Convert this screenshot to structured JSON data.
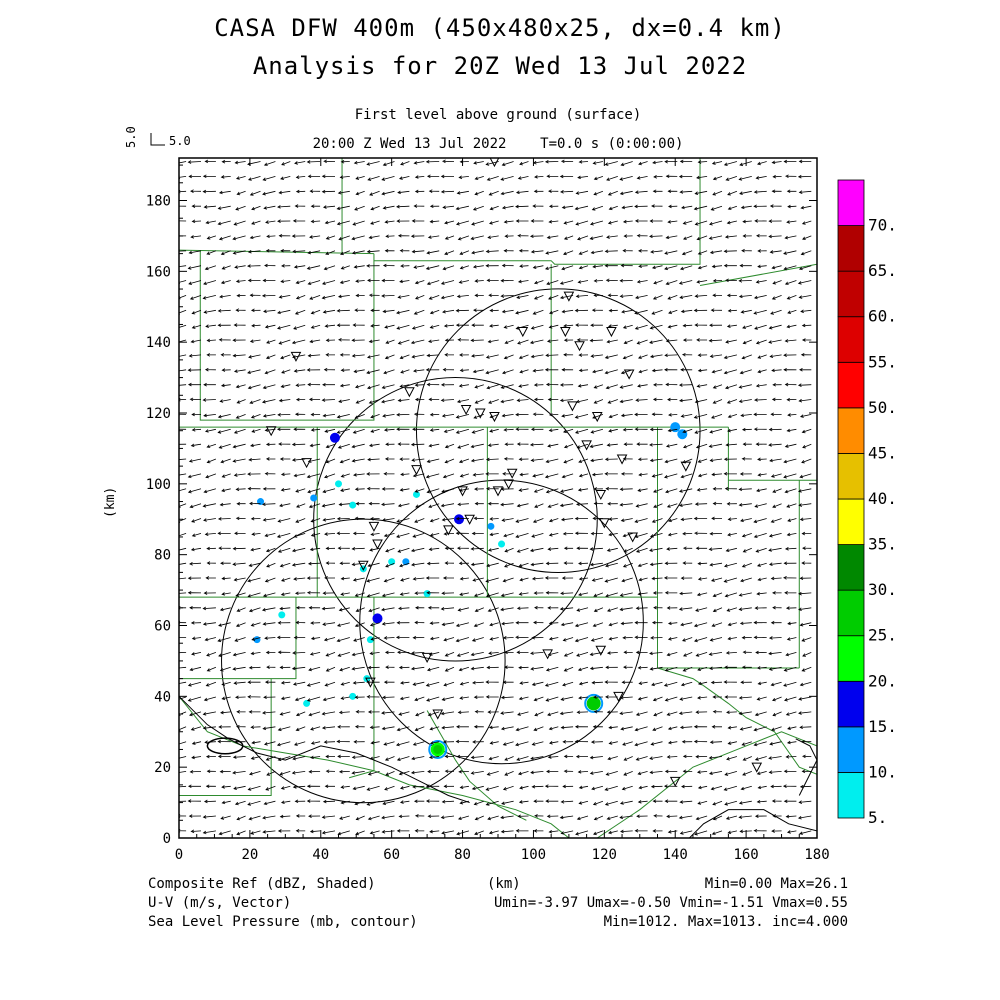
{
  "title_line1": "CASA DFW 400m (450x480x25, dx=0.4 km)",
  "title_line2": "Analysis for 20Z Wed 13 Jul 2022",
  "level_label": "First level above ground (surface)",
  "time_label": "20:00 Z Wed 13 Jul 2022    T=0.0 s (0:00:00)",
  "ref_vector": {
    "label_rotated": "5.0",
    "label": "5.0"
  },
  "footer": {
    "left1": "Composite Ref (dBZ, Shaded)",
    "left2": "U-V (m/s, Vector)",
    "left3": "Sea Level Pressure (mb, contour)",
    "center1": "(km)",
    "right1": "Min=0.00 Max=26.1",
    "right2": "Umin=-3.97 Umax=-0.50 Vmin=-1.51 Vmax=0.55",
    "right3": "Min=1012. Max=1013. inc=4.000"
  },
  "chart_data": {
    "type": "heatmap",
    "xlabel": "",
    "ylabel": "(km)",
    "xlim": [
      0,
      180
    ],
    "ylim": [
      0,
      192
    ],
    "x_ticks": [
      "0",
      "20",
      "40",
      "60",
      "80",
      "100",
      "120",
      "140",
      "160",
      "180"
    ],
    "y_ticks": [
      "0",
      "20",
      "40",
      "60",
      "80",
      "100",
      "120",
      "140",
      "160",
      "180"
    ],
    "colorbar": {
      "labels": [
        "5.",
        "10.",
        "15.",
        "20.",
        "25.",
        "30.",
        "35.",
        "40.",
        "45.",
        "50.",
        "55.",
        "60.",
        "65.",
        "70."
      ],
      "colors": [
        "#00eeee",
        "#0099ff",
        "#0000ee",
        "#00ff00",
        "#00cc00",
        "#008800",
        "#ffff00",
        "#e6c000",
        "#ff8c00",
        "#ff0000",
        "#dd0000",
        "#c00000",
        "#b00000",
        "#ff00ff"
      ]
    },
    "radar_rings": [
      {
        "center": [
          107,
          115
        ],
        "radius": 40
      },
      {
        "center": [
          78,
          90
        ],
        "radius": 40
      },
      {
        "center": [
          91,
          61
        ],
        "radius": 40
      },
      {
        "center": [
          52,
          50
        ],
        "radius": 40
      }
    ],
    "wind_vectors": {
      "u_typical": -2.5,
      "v_typical": -0.4,
      "ref_speed": 5.0
    },
    "reflectivity_cells": [
      {
        "x": 44,
        "y": 113,
        "dbz": 15
      },
      {
        "x": 140,
        "y": 116,
        "dbz": 12
      },
      {
        "x": 142,
        "y": 114,
        "dbz": 12
      },
      {
        "x": 23,
        "y": 95,
        "dbz": 10
      },
      {
        "x": 38,
        "y": 96,
        "dbz": 10
      },
      {
        "x": 45,
        "y": 100,
        "dbz": 8
      },
      {
        "x": 49,
        "y": 94,
        "dbz": 8
      },
      {
        "x": 67,
        "y": 97,
        "dbz": 8
      },
      {
        "x": 79,
        "y": 90,
        "dbz": 15
      },
      {
        "x": 88,
        "y": 88,
        "dbz": 10
      },
      {
        "x": 91,
        "y": 83,
        "dbz": 8
      },
      {
        "x": 60,
        "y": 78,
        "dbz": 8
      },
      {
        "x": 64,
        "y": 78,
        "dbz": 10
      },
      {
        "x": 52,
        "y": 76,
        "dbz": 8
      },
      {
        "x": 56,
        "y": 62,
        "dbz": 15
      },
      {
        "x": 22,
        "y": 56,
        "dbz": 10
      },
      {
        "x": 54,
        "y": 56,
        "dbz": 8
      },
      {
        "x": 29,
        "y": 63,
        "dbz": 8
      },
      {
        "x": 36,
        "y": 38,
        "dbz": 8
      },
      {
        "x": 49,
        "y": 40,
        "dbz": 8
      },
      {
        "x": 53,
        "y": 45,
        "dbz": 8
      },
      {
        "x": 70,
        "y": 69,
        "dbz": 8
      },
      {
        "x": 117,
        "y": 38,
        "dbz": 26
      },
      {
        "x": 73,
        "y": 25,
        "dbz": 24
      }
    ],
    "stations": [
      [
        89,
        191
      ],
      [
        110,
        153
      ],
      [
        97,
        143
      ],
      [
        109,
        143
      ],
      [
        113,
        139
      ],
      [
        122,
        143
      ],
      [
        127,
        131
      ],
      [
        33,
        136
      ],
      [
        65,
        126
      ],
      [
        81,
        121
      ],
      [
        85,
        120
      ],
      [
        89,
        119
      ],
      [
        111,
        122
      ],
      [
        118,
        119
      ],
      [
        26,
        115
      ],
      [
        36,
        106
      ],
      [
        67,
        104
      ],
      [
        94,
        103
      ],
      [
        115,
        111
      ],
      [
        125,
        107
      ],
      [
        143,
        105
      ],
      [
        80,
        98
      ],
      [
        90,
        98
      ],
      [
        93,
        100
      ],
      [
        119,
        97
      ],
      [
        55,
        88
      ],
      [
        76,
        87
      ],
      [
        82,
        90
      ],
      [
        120,
        89
      ],
      [
        128,
        85
      ],
      [
        56,
        83
      ],
      [
        52,
        77
      ],
      [
        70,
        51
      ],
      [
        104,
        52
      ],
      [
        119,
        53
      ],
      [
        54,
        44
      ],
      [
        124,
        40
      ],
      [
        73,
        35
      ],
      [
        140,
        16
      ],
      [
        163,
        20
      ]
    ],
    "slp_range": {
      "min": 1012,
      "max": 1013,
      "inc": 4.0
    }
  }
}
